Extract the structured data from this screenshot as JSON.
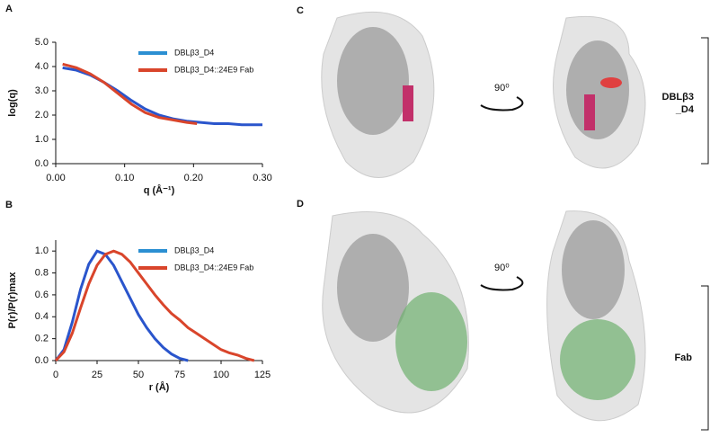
{
  "chart_data": [
    {
      "type": "line",
      "panel": "A",
      "xlabel": "q (Å⁻¹)",
      "ylabel": "log(q)",
      "xlim": [
        0,
        0.3
      ],
      "ylim": [
        0,
        5
      ],
      "xticks": [
        {
          "value": 0,
          "label": "0.00"
        },
        {
          "value": 0.1,
          "label": "0.10"
        },
        {
          "value": 0.2,
          "label": "0.20"
        },
        {
          "value": 0.3,
          "label": "0.30"
        }
      ],
      "yticks": [
        {
          "value": 0,
          "label": "0.0"
        },
        {
          "value": 1,
          "label": "1.0"
        },
        {
          "value": 2,
          "label": "2.0"
        },
        {
          "value": 3,
          "label": "3.0"
        },
        {
          "value": 4,
          "label": "4.0"
        },
        {
          "value": 5,
          "label": "5.0"
        }
      ],
      "series": [
        {
          "name": "DBLβ3_D4",
          "color": "#2a55cc",
          "legend_color": "#2b8fd2",
          "x": [
            0.01,
            0.03,
            0.05,
            0.07,
            0.09,
            0.11,
            0.13,
            0.15,
            0.17,
            0.19,
            0.21,
            0.23,
            0.25,
            0.27,
            0.29,
            0.3
          ],
          "values": [
            3.95,
            3.85,
            3.65,
            3.35,
            3.0,
            2.6,
            2.25,
            2.0,
            1.85,
            1.75,
            1.7,
            1.65,
            1.65,
            1.6,
            1.6,
            1.6
          ]
        },
        {
          "name": "DBLβ3_D4::24E9 Fab",
          "color": "#d9452b",
          "legend_color": "#d9452b",
          "x": [
            0.01,
            0.03,
            0.05,
            0.07,
            0.09,
            0.11,
            0.13,
            0.15,
            0.17,
            0.19,
            0.205
          ],
          "values": [
            4.1,
            3.95,
            3.7,
            3.35,
            2.9,
            2.45,
            2.1,
            1.9,
            1.8,
            1.7,
            1.65
          ]
        }
      ]
    },
    {
      "type": "line",
      "panel": "B",
      "xlabel": "r (Å)",
      "ylabel": "P(r)/P(r)max",
      "xlim": [
        0,
        125
      ],
      "ylim": [
        0,
        1.1
      ],
      "xticks": [
        0,
        25,
        50,
        75,
        100,
        125
      ],
      "yticks": [
        {
          "value": 0,
          "label": "0.0"
        },
        {
          "value": 0.2,
          "label": "0.2"
        },
        {
          "value": 0.4,
          "label": "0.4"
        },
        {
          "value": 0.6,
          "label": "0.6"
        },
        {
          "value": 0.8,
          "label": "0.8"
        },
        {
          "value": 1,
          "label": "1.0"
        }
      ],
      "series": [
        {
          "name": "DBLβ3_D4",
          "color": "#2a55cc",
          "legend_color": "#2b8fd2",
          "x": [
            0,
            5,
            10,
            15,
            20,
            25,
            30,
            35,
            40,
            45,
            50,
            55,
            60,
            65,
            70,
            75,
            80
          ],
          "values": [
            0,
            0.1,
            0.35,
            0.65,
            0.88,
            1.0,
            0.97,
            0.87,
            0.72,
            0.57,
            0.42,
            0.3,
            0.2,
            0.12,
            0.06,
            0.02,
            0
          ]
        },
        {
          "name": "DBLβ3_D4::24E9 Fab",
          "color": "#d9452b",
          "legend_color": "#d9452b",
          "x": [
            0,
            5,
            10,
            15,
            20,
            25,
            30,
            35,
            40,
            45,
            50,
            55,
            60,
            65,
            70,
            75,
            80,
            85,
            90,
            95,
            100,
            105,
            110,
            115,
            120
          ],
          "values": [
            0,
            0.08,
            0.25,
            0.48,
            0.7,
            0.87,
            0.97,
            1.0,
            0.97,
            0.9,
            0.8,
            0.7,
            0.6,
            0.51,
            0.43,
            0.37,
            0.3,
            0.25,
            0.2,
            0.15,
            0.1,
            0.07,
            0.05,
            0.02,
            0
          ]
        }
      ]
    }
  ],
  "structures": {
    "panel_c": "C",
    "panel_d": "D",
    "rotation_c": "90⁰",
    "rotation_d": "90⁰",
    "label_c": [
      "DBLβ3",
      "_D4"
    ],
    "label_d": "Fab"
  }
}
